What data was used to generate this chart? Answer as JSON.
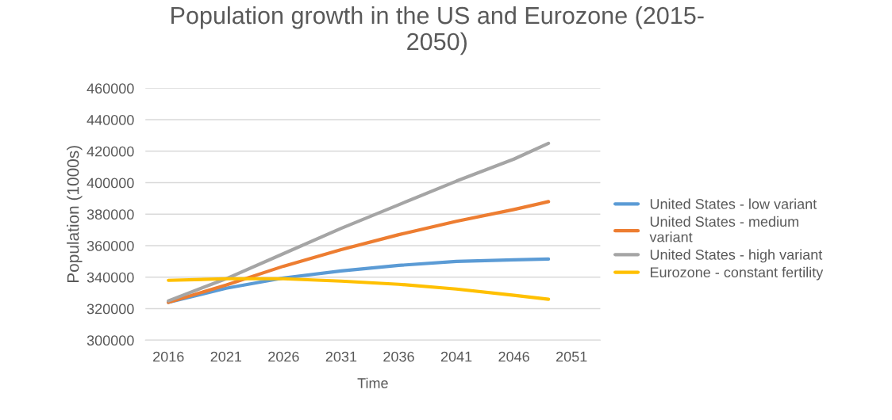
{
  "chart_data": {
    "type": "line",
    "title": "Population growth in the US and Eurozone (2015-\n2050)",
    "xlabel": "Time",
    "ylabel": "Population (1000s)",
    "x": [
      2016,
      2021,
      2026,
      2031,
      2036,
      2041,
      2046,
      2049
    ],
    "series": [
      {
        "name": "United States - low variant",
        "color": "#5b9bd5",
        "values": [
          324000,
          333000,
          339500,
          344000,
          347500,
          350000,
          351000,
          351500
        ]
      },
      {
        "name": "United States - medium\nvariant",
        "color": "#ed7d31",
        "values": [
          324000,
          335000,
          347000,
          357500,
          367000,
          375500,
          383000,
          388000
        ]
      },
      {
        "name": "United States - high variant",
        "color": "#a5a5a5",
        "values": [
          325000,
          339000,
          355000,
          371000,
          386000,
          401000,
          415000,
          425000
        ]
      },
      {
        "name": "Eurozone - constant fertility",
        "color": "#ffc000",
        "values": [
          338000,
          339000,
          339000,
          337500,
          335500,
          332500,
          328500,
          326000
        ]
      }
    ],
    "xlim": [
      2014,
      2053.5
    ],
    "xticks": [
      2016,
      2021,
      2026,
      2031,
      2036,
      2041,
      2046,
      2051
    ],
    "ylim": [
      300000,
      460000
    ],
    "yticks": [
      300000,
      320000,
      340000,
      360000,
      380000,
      400000,
      420000,
      440000,
      460000
    ],
    "grid": "y",
    "legend": "right",
    "marker": "none",
    "line_style": "solid"
  }
}
